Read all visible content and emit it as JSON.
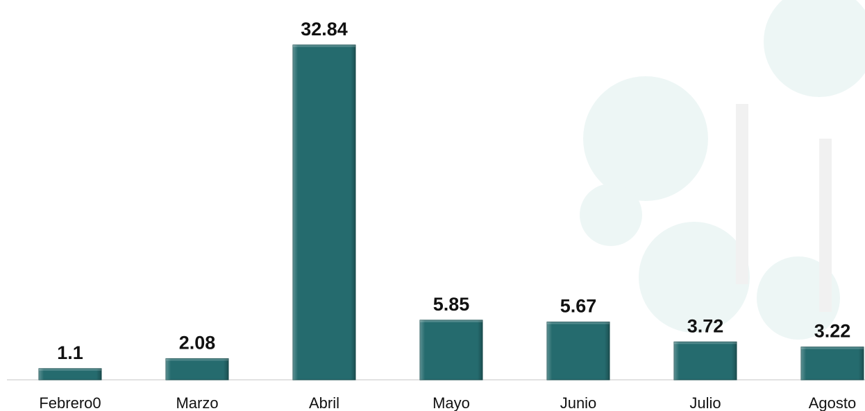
{
  "chart_data": {
    "type": "bar",
    "categories": [
      "Febrero0",
      "Marzo",
      "Abril",
      "Mayo",
      "Junio",
      "Julio",
      "Agosto"
    ],
    "values": [
      1.1,
      2.08,
      32.84,
      5.85,
      5.67,
      3.72,
      3.22
    ],
    "color": "#256b6e",
    "ylim": [
      0,
      37.25
    ]
  }
}
